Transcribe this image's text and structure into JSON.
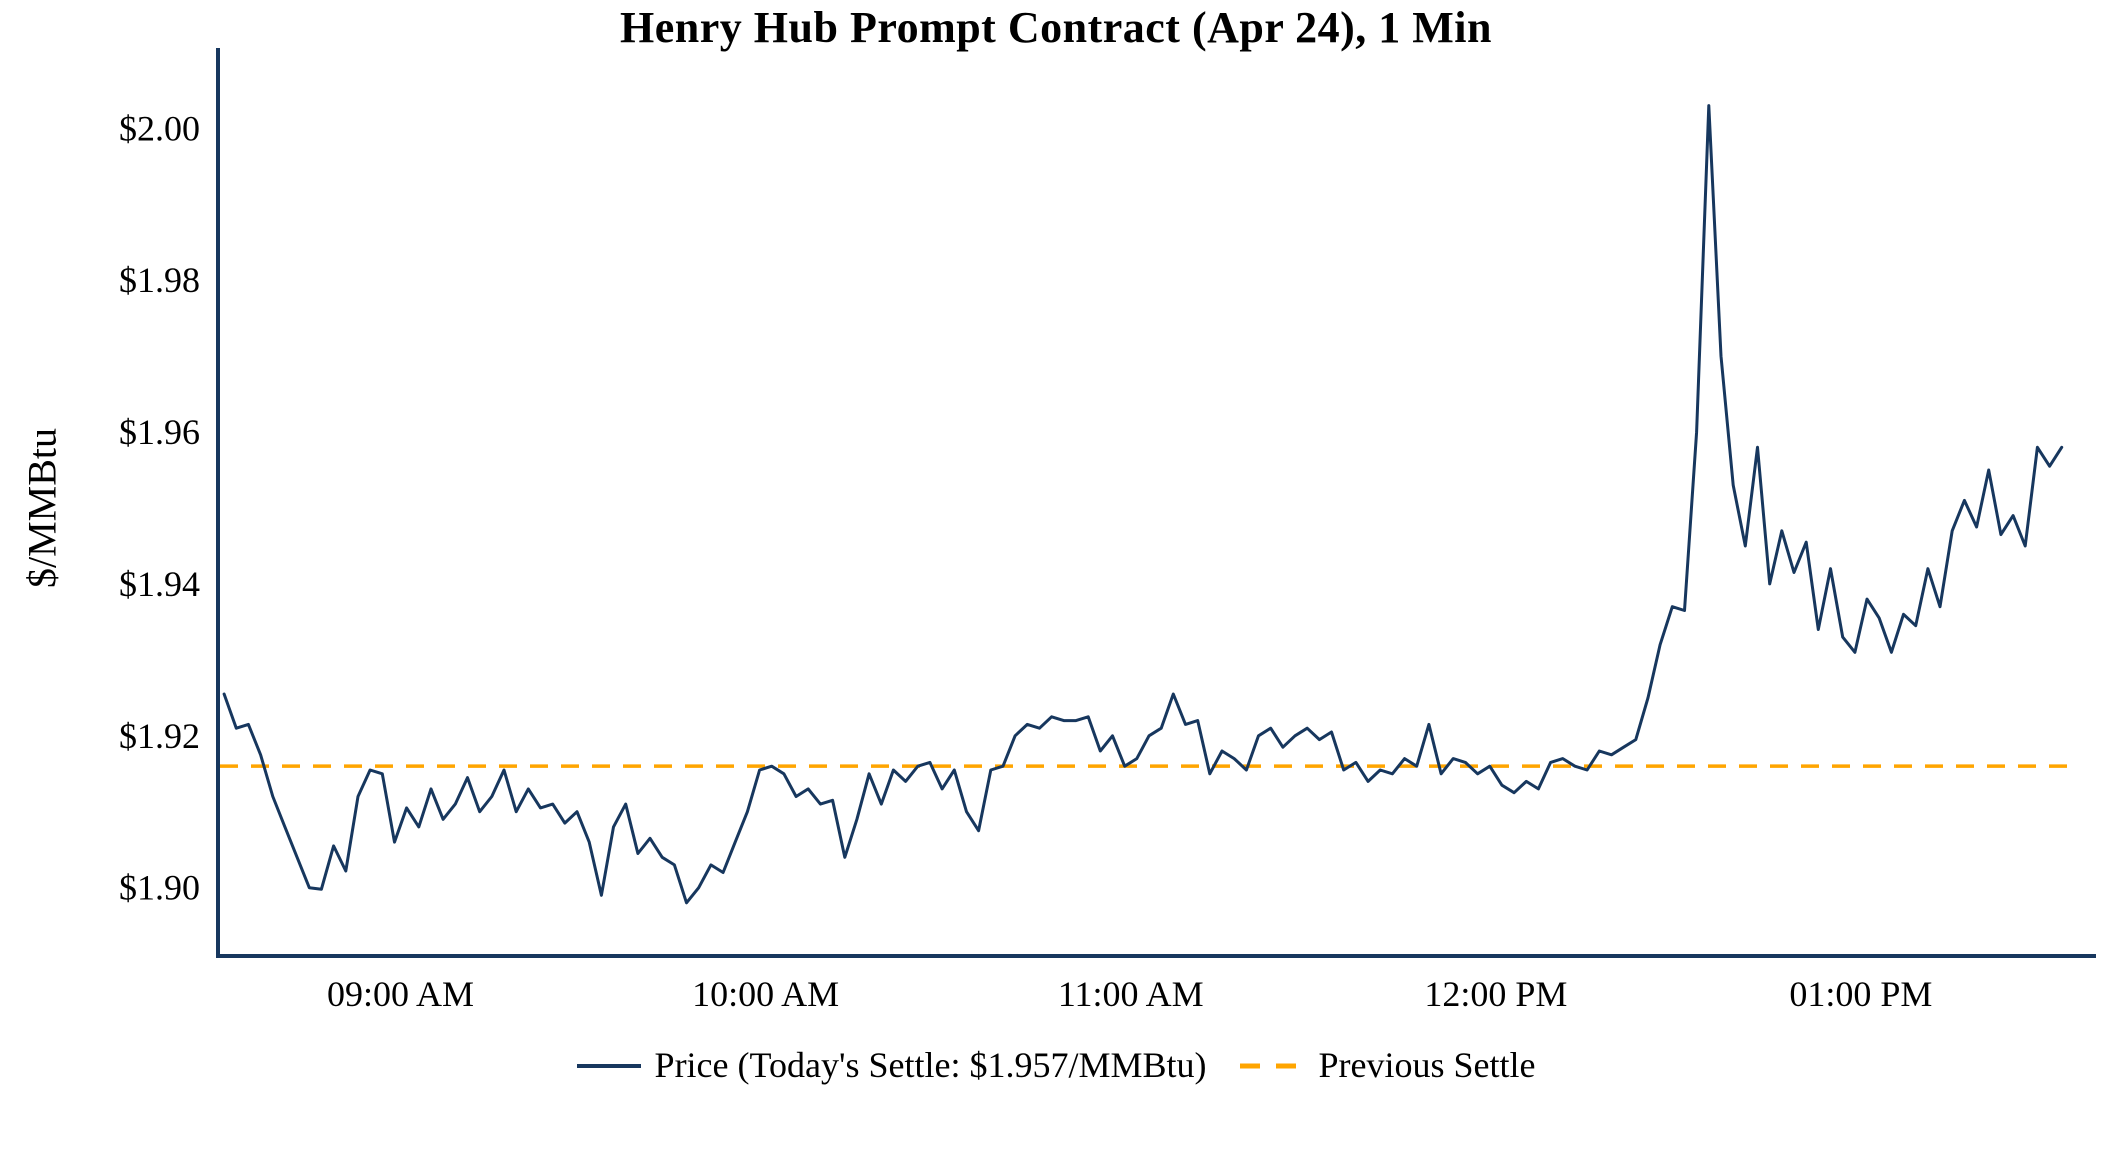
{
  "chart_data": {
    "type": "line",
    "title": "Henry Hub Prompt Contract (Apr 24), 1 Min",
    "xlabel": "",
    "ylabel": "$/MMBtu",
    "grid": false,
    "legend_position": "bottom",
    "axis_color": "#17375e",
    "ylim": [
      1.891,
      2.009
    ],
    "y_ticks": [
      {
        "value": 1.9,
        "label": "$1.90"
      },
      {
        "value": 1.92,
        "label": "$1.92"
      },
      {
        "value": 1.94,
        "label": "$1.94"
      },
      {
        "value": 1.96,
        "label": "$1.96"
      },
      {
        "value": 1.98,
        "label": "$1.98"
      },
      {
        "value": 2.0,
        "label": "$2.00"
      }
    ],
    "x_base_time": "08:30 AM",
    "x_domain_minutes": [
      0,
      306
    ],
    "x_start_minutes": 1,
    "x_interval_minutes": 2,
    "x_ticks": [
      {
        "minute": 30,
        "label": "09:00 AM"
      },
      {
        "minute": 90,
        "label": "10:00 AM"
      },
      {
        "minute": 150,
        "label": "11:00 AM"
      },
      {
        "minute": 210,
        "label": "12:00 PM"
      },
      {
        "minute": 270,
        "label": "01:00 PM"
      }
    ],
    "todays_settle_value": 1.957,
    "series": [
      {
        "name": "Price (Today's Settle: $1.957/MMBtu)",
        "color": "#17375e",
        "style": "solid",
        "values": [
          1.9255,
          1.921,
          1.9215,
          1.9175,
          1.912,
          1.908,
          1.904,
          1.9,
          1.8998,
          1.9055,
          1.9022,
          1.912,
          1.9155,
          1.915,
          1.906,
          1.9105,
          1.908,
          1.913,
          1.909,
          1.911,
          1.9145,
          1.91,
          1.912,
          1.9155,
          1.91,
          1.913,
          1.9105,
          1.911,
          1.9085,
          1.91,
          1.906,
          1.899,
          1.908,
          1.911,
          1.9045,
          1.9065,
          1.904,
          1.903,
          1.898,
          1.9,
          1.903,
          1.902,
          1.906,
          1.91,
          1.9155,
          1.916,
          1.915,
          1.912,
          1.913,
          1.911,
          1.9115,
          1.904,
          1.909,
          1.915,
          1.911,
          1.9155,
          1.914,
          1.916,
          1.9165,
          1.913,
          1.9155,
          1.91,
          1.9075,
          1.9155,
          1.916,
          1.92,
          1.9215,
          1.921,
          1.9225,
          1.922,
          1.922,
          1.9225,
          1.918,
          1.92,
          1.916,
          1.917,
          1.92,
          1.921,
          1.9255,
          1.9215,
          1.922,
          1.915,
          1.918,
          1.917,
          1.9155,
          1.92,
          1.921,
          1.9185,
          1.92,
          1.921,
          1.9195,
          1.9205,
          1.9155,
          1.9165,
          1.914,
          1.9155,
          1.915,
          1.917,
          1.916,
          1.9215,
          1.915,
          1.917,
          1.9165,
          1.915,
          1.916,
          1.9135,
          1.9125,
          1.914,
          1.913,
          1.9165,
          1.917,
          1.916,
          1.9155,
          1.918,
          1.9175,
          1.9185,
          1.9195,
          1.925,
          1.932,
          1.937,
          1.9365,
          1.96,
          2.003,
          1.97,
          1.953,
          1.945,
          1.958,
          1.94,
          1.947,
          1.9415,
          1.9455,
          1.934,
          1.942,
          1.933,
          1.931,
          1.938,
          1.9355,
          1.931,
          1.936,
          1.9345,
          1.942,
          1.937,
          1.947,
          1.951,
          1.9475,
          1.955,
          1.9465,
          1.949,
          1.945,
          1.958,
          1.9555,
          1.958
        ]
      },
      {
        "name": "Previous Settle",
        "color": "#FFA500",
        "style": "dashed",
        "constant": 1.916
      }
    ]
  }
}
